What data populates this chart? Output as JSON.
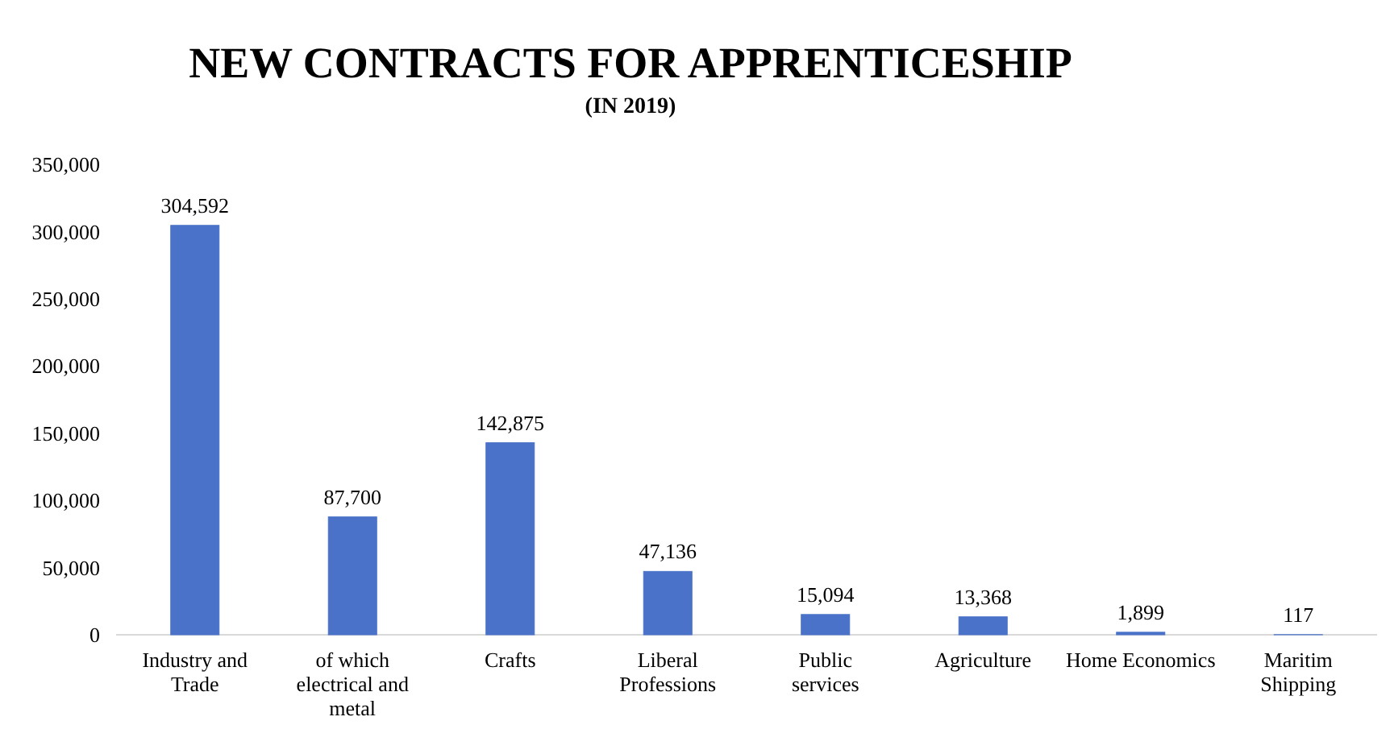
{
  "chart_data": {
    "type": "bar",
    "title": "NEW CONTRACTS FOR APPRENTICESHIP",
    "subtitle": "(IN 2019)",
    "categories": [
      "Industry and Trade",
      "of which electrical and metal",
      "Crafts",
      "Liberal Professions",
      "Public services",
      "Agriculture",
      "Home Economics",
      "Maritim Shipping"
    ],
    "values": [
      304592,
      87700,
      142875,
      47136,
      15094,
      13368,
      1899,
      117
    ],
    "color": "#4a72c8",
    "ylim": [
      0,
      350000
    ],
    "yticks": [
      {
        "value": 0,
        "label": "0"
      },
      {
        "value": 50000,
        "label": "50,000"
      },
      {
        "value": 100000,
        "label": "100,000"
      },
      {
        "value": 150000,
        "label": "150,000"
      },
      {
        "value": 200000,
        "label": "200,000"
      },
      {
        "value": 250000,
        "label": "250,000"
      },
      {
        "value": 300000,
        "label": "300,000"
      },
      {
        "value": 350000,
        "label": "350,000"
      }
    ],
    "value_labels": [
      "304,592",
      "87,700",
      "142,875",
      "47,136",
      "15,094",
      "13,368",
      "1,899",
      "117"
    ],
    "grid": false
  }
}
